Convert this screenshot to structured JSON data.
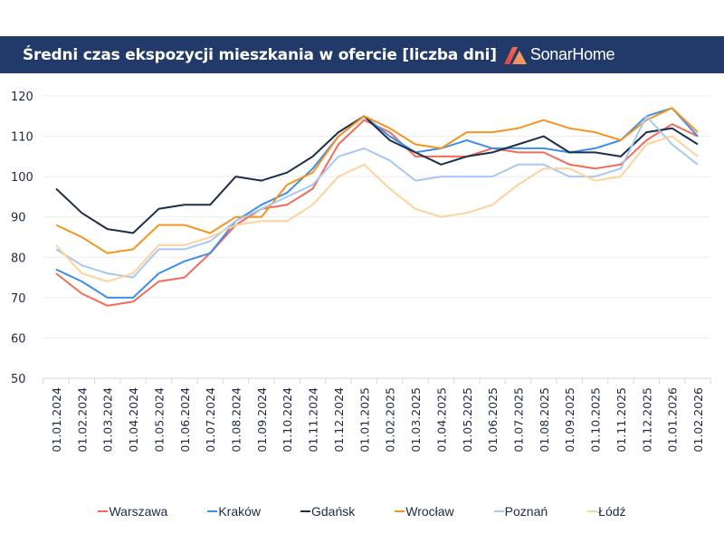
{
  "header": {
    "title": "Średni czas ekspozycji mieszkania w ofercie [liczba dni]",
    "logo_text": "SonarHome",
    "background": "#213a69"
  },
  "chart_data": {
    "type": "line",
    "title": "Średni czas ekspozycji mieszkania w ofercie [liczba dni]",
    "xlabel": "",
    "ylabel": "",
    "ylim": [
      50,
      120
    ],
    "yticks": [
      50,
      60,
      70,
      80,
      90,
      100,
      110,
      120
    ],
    "grid": true,
    "legend_position": "bottom",
    "categories": [
      "01.01.2024",
      "01.02.2024",
      "01.03.2024",
      "01.04.2024",
      "01.05.2024",
      "01.06.2024",
      "01.07.2024",
      "01.08.2024",
      "01.09.2024",
      "01.10.2024",
      "01.11.2024",
      "01.12.2024",
      "01.01.2025",
      "01.02.2025",
      "01.03.2025",
      "01.04.2025",
      "01.05.2025",
      "01.06.2025",
      "01.07.2025",
      "01.08.2025",
      "01.09.2025",
      "01.10.2025",
      "01.11.2025",
      "01.12.2025",
      "01.01.2026",
      "01.02.2026"
    ],
    "series": [
      {
        "name": "Warszawa",
        "color": "#f26b5b",
        "values": [
          76,
          71,
          68,
          69,
          74,
          75,
          81,
          88,
          92,
          93,
          97,
          108,
          114,
          111,
          105,
          105,
          105,
          107,
          106,
          106,
          103,
          102,
          103,
          109,
          113,
          110
        ]
      },
      {
        "name": "Kraków",
        "color": "#3f8ee8",
        "values": [
          77,
          74,
          70,
          70,
          76,
          79,
          81,
          89,
          93,
          96,
          102,
          110,
          115,
          110,
          106,
          107,
          109,
          107,
          107,
          107,
          106,
          107,
          109,
          115,
          117,
          110
        ]
      },
      {
        "name": "Gdańsk",
        "color": "#1c2e4a",
        "values": [
          97,
          91,
          87,
          86,
          92,
          93,
          93,
          100,
          99,
          101,
          105,
          111,
          115,
          109,
          106,
          103,
          105,
          106,
          108,
          110,
          106,
          106,
          105,
          111,
          112,
          108
        ]
      },
      {
        "name": "Wrocław",
        "color": "#f5951f",
        "values": [
          88,
          85,
          81,
          82,
          88,
          88,
          86,
          90,
          90,
          98,
          101,
          110,
          115,
          112,
          108,
          107,
          111,
          111,
          112,
          114,
          112,
          111,
          109,
          114,
          117,
          111
        ]
      },
      {
        "name": "Poznań",
        "color": "#a6c8f2",
        "values": [
          82,
          78,
          76,
          75,
          82,
          82,
          84,
          89,
          92,
          95,
          98,
          105,
          107,
          104,
          99,
          100,
          100,
          100,
          103,
          103,
          100,
          100,
          102,
          115,
          108,
          103
        ]
      },
      {
        "name": "Łódź",
        "color": "#fdd29c",
        "values": [
          83,
          76,
          74,
          76,
          83,
          83,
          85,
          88,
          89,
          89,
          93,
          100,
          103,
          97,
          92,
          90,
          91,
          93,
          98,
          102,
          102,
          99,
          100,
          108,
          110,
          105
        ]
      }
    ]
  }
}
